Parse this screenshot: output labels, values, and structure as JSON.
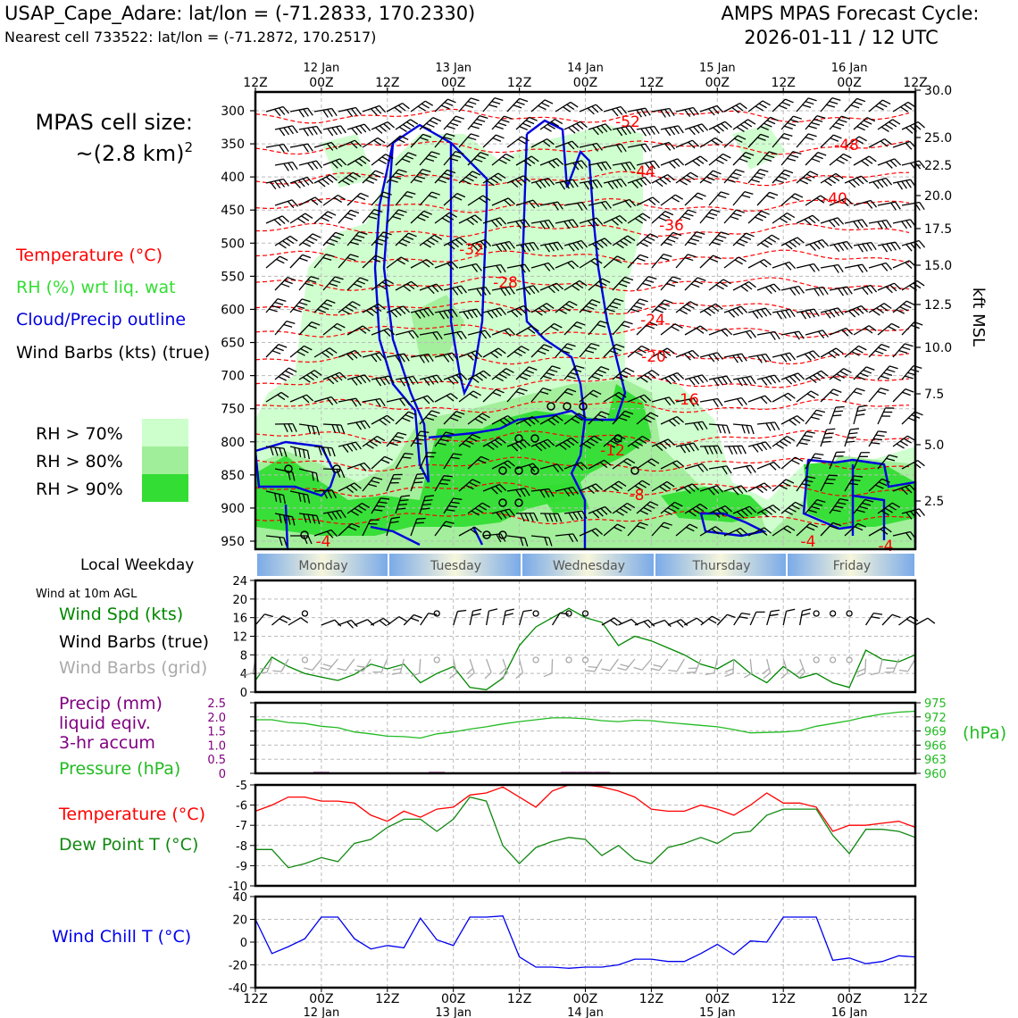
{
  "header": {
    "station": "USAP_Cape_Adare: lat/lon = (-71.2833, 170.2330)",
    "cell": "Nearest cell 733522: lat/lon = (-71.2872, 170.2517)",
    "cycle_title": "AMPS MPAS Forecast Cycle:",
    "cycle_time": "2026-01-11 / 12 UTC",
    "mpas_title": "MPAS cell size:",
    "mpas_size": "~(2.8 km)",
    "mpas_exp": "2"
  },
  "time_axis": {
    "top_labels": [
      "12Z",
      "00Z",
      "12Z",
      "00Z",
      "12Z",
      "00Z",
      "12Z",
      "00Z",
      "12Z",
      "00Z",
      "12Z"
    ],
    "day_labels": [
      "12 Jan",
      "13 Jan",
      "14 Jan",
      "15 Jan",
      "16 Jan"
    ]
  },
  "weekday": {
    "title": "Local Weekday",
    "days": [
      "Monday",
      "Tuesday",
      "Wednesday",
      "Thursday",
      "Friday"
    ]
  },
  "colors": {
    "temperature": "#ff0000",
    "rh_label": "#33dd33",
    "cloud": "#0000dd",
    "rh70": "#ccffcc",
    "rh80": "#a0ee99",
    "rh90": "#33dd33",
    "wind_speed": "#008800",
    "barb_grid": "#aaaaaa",
    "precip": "#800080",
    "pressure": "#22bb22",
    "dewpoint": "#118811",
    "windchill": "#0000ee",
    "weekday_blue": "#7aaae8",
    "weekday_cream": "#f6f6dc"
  },
  "chart_data": [
    {
      "type": "heatmap",
      "title": "Time-height cross section",
      "legend": {
        "temperature": "Temperature (°C)",
        "rh": "RH (%) wrt liq. wat",
        "cloud": "Cloud/Precip outline",
        "barbs": "Wind Barbs (kts) (true)",
        "rh_levels": [
          "RH > 70%",
          "RH > 80%",
          "RH > 90%"
        ]
      },
      "ylabel_right": "kft MSL",
      "pressure_ticks": [
        "300",
        "350",
        "400",
        "450",
        "500",
        "550",
        "600",
        "650",
        "700",
        "750",
        "800",
        "850",
        "900",
        "950"
      ],
      "kft_ticks": [
        "30.0",
        "25.0",
        "22.5",
        "20.0",
        "17.5",
        "15.0",
        "12.5",
        "10.0",
        "7.5",
        "5.0",
        "2.5"
      ],
      "ylim_hpa": [
        975,
        282
      ],
      "xlim_hours": [
        0,
        120
      ],
      "isotherm_labels": [
        "-52",
        "-48",
        "-44",
        "-40",
        "-36",
        "-32",
        "-28",
        "-24",
        "-20",
        "-16",
        "-12",
        "-8",
        "-4",
        "-4",
        "-4"
      ]
    },
    {
      "type": "line",
      "title": "Wind at 10m AGL",
      "labels": [
        "Wind Spd (kts)",
        "Wind Barbs (true)",
        "Wind Barbs (grid)"
      ],
      "ylim": [
        0,
        24
      ],
      "yticks": [
        "0",
        "4",
        "8",
        "12",
        "16",
        "20",
        "24"
      ],
      "x_hours": [
        0,
        3,
        6,
        9,
        12,
        15,
        18,
        21,
        24,
        27,
        30,
        33,
        36,
        39,
        42,
        45,
        48,
        51,
        54,
        57,
        60,
        63,
        66,
        69,
        72,
        75,
        78,
        81,
        84,
        87,
        90,
        93,
        96,
        99,
        102,
        105,
        108,
        111,
        114,
        117,
        120
      ],
      "wind_speed": [
        2.5,
        7.5,
        5.5,
        4,
        3.2,
        2.5,
        3.8,
        6,
        5,
        6,
        2,
        4,
        5.5,
        1,
        0.5,
        3,
        10,
        14,
        16,
        18,
        16,
        15,
        10,
        12,
        11,
        9.5,
        8,
        6,
        5,
        7,
        4,
        2,
        5.5,
        3,
        4,
        2,
        1,
        9,
        7,
        6.5,
        8
      ]
    },
    {
      "type": "line",
      "labels": [
        "Precip (mm)",
        "liquid eqiv.",
        "3-hr accum",
        "Pressure (hPa)"
      ],
      "precip_yticks": [
        "2.5",
        "2.0",
        "1.5",
        "1.0",
        "0.5",
        "0"
      ],
      "pressure_yticks": [
        "975",
        "972",
        "969",
        "966",
        "963",
        "960"
      ],
      "unit_right": "(hPa)",
      "precip_ylim": [
        0,
        2.5
      ],
      "pressure_ylim": [
        960,
        975
      ],
      "x_hours": [
        0,
        3,
        6,
        9,
        12,
        15,
        18,
        21,
        24,
        27,
        30,
        33,
        36,
        39,
        42,
        45,
        48,
        51,
        54,
        57,
        60,
        63,
        66,
        69,
        72,
        75,
        78,
        81,
        84,
        87,
        90,
        93,
        96,
        99,
        102,
        105,
        108,
        111,
        114,
        117,
        120
      ],
      "pressure": [
        971.4,
        971.4,
        970.8,
        970.6,
        970.0,
        969.7,
        968.8,
        968.4,
        967.9,
        967.8,
        967.5,
        968.4,
        968.8,
        969.4,
        969.9,
        970.5,
        971.0,
        971.4,
        971.8,
        971.8,
        971.6,
        971.2,
        971.0,
        971.3,
        971.2,
        970.8,
        970.5,
        970.2,
        969.9,
        969.3,
        968.6,
        968.7,
        968.8,
        969.1,
        970.0,
        970.6,
        971.2,
        972.0,
        972.6,
        973.0,
        973.2
      ],
      "precip": [
        0,
        0,
        0,
        0,
        0.05,
        0,
        0,
        0,
        0,
        0,
        0,
        0.05,
        0,
        0,
        0,
        0,
        0,
        0,
        0,
        0.05,
        0.05,
        0.05,
        0,
        0,
        0,
        0,
        0,
        0,
        0,
        0,
        0,
        0,
        0,
        0,
        0,
        0,
        0,
        0,
        0,
        0,
        0
      ]
    },
    {
      "type": "line",
      "labels": [
        "Temperature (°C)",
        "Dew Point T (°C)"
      ],
      "ylim": [
        -10,
        -5
      ],
      "yticks": [
        "-5",
        "-6",
        "-7",
        "-8",
        "-9",
        "-10"
      ],
      "x_hours": [
        0,
        3,
        6,
        9,
        12,
        15,
        18,
        21,
        24,
        27,
        30,
        33,
        36,
        39,
        42,
        45,
        48,
        51,
        54,
        57,
        60,
        63,
        66,
        69,
        72,
        75,
        78,
        81,
        84,
        87,
        90,
        93,
        96,
        99,
        102,
        105,
        108,
        111,
        114,
        117,
        120
      ],
      "temperature": [
        -6.3,
        -6.0,
        -5.6,
        -5.6,
        -5.8,
        -5.8,
        -5.9,
        -6.5,
        -6.8,
        -6.3,
        -6.6,
        -6.2,
        -6.1,
        -5.5,
        -5.4,
        -5.1,
        -5.6,
        -6.1,
        -5.3,
        -5.0,
        -5.0,
        -5.1,
        -5.3,
        -5.6,
        -6.2,
        -6.3,
        -6.3,
        -6.0,
        -6.2,
        -6.5,
        -6.0,
        -5.4,
        -5.9,
        -5.9,
        -6.1,
        -7.3,
        -7.0,
        -7.0,
        -6.9,
        -6.8,
        -7.1
      ],
      "dewpoint": [
        -8.2,
        -8.2,
        -9.1,
        -8.9,
        -8.6,
        -8.8,
        -7.9,
        -7.7,
        -7.1,
        -6.7,
        -6.7,
        -7.3,
        -6.7,
        -5.6,
        -5.8,
        -8.0,
        -8.9,
        -8.1,
        -7.8,
        -7.6,
        -7.7,
        -8.5,
        -8.0,
        -8.7,
        -8.9,
        -8.1,
        -7.9,
        -7.6,
        -7.9,
        -7.4,
        -7.3,
        -6.5,
        -6.2,
        -6.2,
        -6.2,
        -7.5,
        -8.4,
        -7.2,
        -7.2,
        -7.3,
        -7.6
      ]
    },
    {
      "type": "line",
      "labels": [
        "Wind Chill T (°C)"
      ],
      "ylim": [
        -40,
        40
      ],
      "yticks": [
        "40",
        "20",
        "0",
        "-20",
        "-40"
      ],
      "x_hours": [
        0,
        3,
        6,
        9,
        12,
        15,
        18,
        21,
        24,
        27,
        30,
        33,
        36,
        39,
        42,
        45,
        48,
        51,
        54,
        57,
        60,
        63,
        66,
        69,
        72,
        75,
        78,
        81,
        84,
        87,
        90,
        93,
        96,
        99,
        102,
        105,
        108,
        111,
        114,
        117,
        120
      ],
      "windchill": [
        20,
        -10,
        -4,
        3,
        22,
        22,
        3,
        -6,
        -3,
        -5,
        21,
        2,
        -3,
        22,
        22,
        23,
        -13,
        -22,
        -22,
        -23,
        -22,
        -22,
        -20,
        -15,
        -15,
        -17,
        -17,
        -10,
        -2,
        -11,
        1,
        0,
        22,
        22,
        22,
        -16,
        -14,
        -19,
        -17,
        -12,
        -13
      ]
    }
  ]
}
